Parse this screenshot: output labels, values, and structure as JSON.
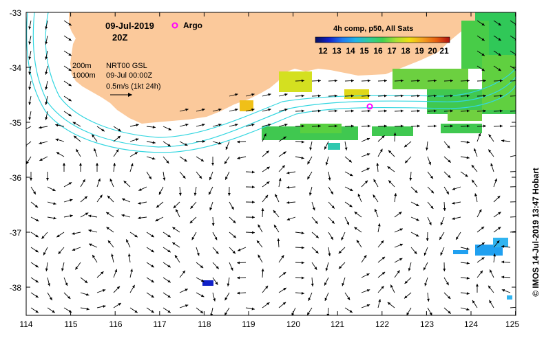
{
  "map": {
    "date": "09-Jul-2019",
    "hour": "20Z",
    "argo_label": "Argo",
    "composite_title": "4h comp, p50, All Sats",
    "colorbar_ticks": [
      "12",
      "13",
      "14",
      "15",
      "16",
      "17",
      "18",
      "19",
      "20",
      "21"
    ],
    "contour_labels": [
      "200m",
      "1000m"
    ],
    "product": "NRT00 GSL",
    "product_time": "09-Jul 00:00Z",
    "scale_label": "0.5m/s (1kt 24h)",
    "credit": "© IMOS 14-Jul-2019 13:47 Hobart",
    "lon_ticks": [
      "114",
      "115",
      "116",
      "117",
      "118",
      "119",
      "120",
      "121",
      "122",
      "123",
      "124",
      "125"
    ],
    "lat_ticks": [
      "-33",
      "-34",
      "-35",
      "-36",
      "-37",
      "-38"
    ],
    "colors": {
      "land": "#fbc99b",
      "isobath": "#33d6e0",
      "argo": "#ff00ff",
      "colorbar": [
        "#08105c",
        "#1020c8",
        "#1e78f0",
        "#20b4e8",
        "#30cc9c",
        "#40d050",
        "#a8e034",
        "#f0e010",
        "#f4a020",
        "#e86010",
        "#b01010"
      ]
    }
  }
}
